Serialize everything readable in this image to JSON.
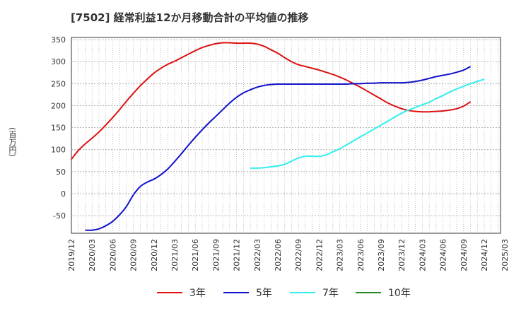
{
  "chart_data": {
    "type": "line",
    "title": "[7502]  経常利益12か月移動合計の平均値の推移",
    "ylabel": "(百万円)",
    "xlabel": "",
    "ylim": [
      -90,
      355
    ],
    "yticks": [
      -50,
      0,
      50,
      100,
      150,
      200,
      250,
      300,
      350
    ],
    "xticks": [
      "2019/12",
      "2020/03",
      "2020/06",
      "2020/09",
      "2020/12",
      "2021/03",
      "2021/06",
      "2021/09",
      "2021/12",
      "2022/03",
      "2022/06",
      "2022/09",
      "2022/12",
      "2023/03",
      "2023/06",
      "2023/09",
      "2023/12",
      "2024/03",
      "2024/06",
      "2024/09",
      "2024/12",
      "2025/03"
    ],
    "grid": true,
    "legend_position": "bottom",
    "series": [
      {
        "name": "3年",
        "color": "#dd1111",
        "points": [
          [
            "2019/12",
            78
          ],
          [
            "2020/01",
            98
          ],
          [
            "2020/02",
            113
          ],
          [
            "2020/03",
            126
          ],
          [
            "2020/04",
            140
          ],
          [
            "2020/05",
            156
          ],
          [
            "2020/06",
            173
          ],
          [
            "2020/07",
            191
          ],
          [
            "2020/08",
            210
          ],
          [
            "2020/09",
            228
          ],
          [
            "2020/10",
            245
          ],
          [
            "2020/11",
            260
          ],
          [
            "2020/12",
            274
          ],
          [
            "2021/01",
            285
          ],
          [
            "2021/02",
            294
          ],
          [
            "2021/03",
            301
          ],
          [
            "2021/04",
            309
          ],
          [
            "2021/05",
            317
          ],
          [
            "2021/06",
            325
          ],
          [
            "2021/07",
            332
          ],
          [
            "2021/08",
            337
          ],
          [
            "2021/09",
            341
          ],
          [
            "2021/10",
            343
          ],
          [
            "2021/11",
            343
          ],
          [
            "2021/12",
            342
          ],
          [
            "2022/01",
            342
          ],
          [
            "2022/02",
            342
          ],
          [
            "2022/03",
            340
          ],
          [
            "2022/04",
            335
          ],
          [
            "2022/05",
            327
          ],
          [
            "2022/06",
            319
          ],
          [
            "2022/07",
            309
          ],
          [
            "2022/08",
            300
          ],
          [
            "2022/09",
            293
          ],
          [
            "2022/10",
            289
          ],
          [
            "2022/11",
            285
          ],
          [
            "2022/12",
            281
          ],
          [
            "2023/01",
            276
          ],
          [
            "2023/02",
            271
          ],
          [
            "2023/03",
            265
          ],
          [
            "2023/04",
            258
          ],
          [
            "2023/05",
            250
          ],
          [
            "2023/06",
            242
          ],
          [
            "2023/07",
            233
          ],
          [
            "2023/08",
            224
          ],
          [
            "2023/09",
            215
          ],
          [
            "2023/10",
            206
          ],
          [
            "2023/11",
            199
          ],
          [
            "2023/12",
            193
          ],
          [
            "2024/01",
            189
          ],
          [
            "2024/02",
            187
          ],
          [
            "2024/03",
            186
          ],
          [
            "2024/04",
            186
          ],
          [
            "2024/05",
            187
          ],
          [
            "2024/06",
            188
          ],
          [
            "2024/07",
            190
          ],
          [
            "2024/08",
            193
          ],
          [
            "2024/09",
            199
          ],
          [
            "2024/10",
            209
          ]
        ]
      },
      {
        "name": "5年",
        "color": "#1111cc",
        "points": [
          [
            "2020/02",
            -83
          ],
          [
            "2020/03",
            -83
          ],
          [
            "2020/04",
            -80
          ],
          [
            "2020/05",
            -73
          ],
          [
            "2020/06",
            -63
          ],
          [
            "2020/07",
            -48
          ],
          [
            "2020/08",
            -29
          ],
          [
            "2020/09",
            -3
          ],
          [
            "2020/10",
            16
          ],
          [
            "2020/11",
            26
          ],
          [
            "2020/12",
            33
          ],
          [
            "2021/01",
            43
          ],
          [
            "2021/02",
            56
          ],
          [
            "2021/03",
            73
          ],
          [
            "2021/04",
            91
          ],
          [
            "2021/05",
            110
          ],
          [
            "2021/06",
            128
          ],
          [
            "2021/07",
            145
          ],
          [
            "2021/08",
            161
          ],
          [
            "2021/09",
            176
          ],
          [
            "2021/10",
            191
          ],
          [
            "2021/11",
            206
          ],
          [
            "2021/12",
            219
          ],
          [
            "2022/01",
            229
          ],
          [
            "2022/02",
            236
          ],
          [
            "2022/03",
            242
          ],
          [
            "2022/04",
            246
          ],
          [
            "2022/05",
            248
          ],
          [
            "2022/06",
            249
          ],
          [
            "2022/07",
            249
          ],
          [
            "2022/08",
            249
          ],
          [
            "2022/09",
            249
          ],
          [
            "2022/10",
            249
          ],
          [
            "2022/11",
            249
          ],
          [
            "2022/12",
            249
          ],
          [
            "2023/01",
            249
          ],
          [
            "2023/02",
            249
          ],
          [
            "2023/03",
            249
          ],
          [
            "2023/04",
            249
          ],
          [
            "2023/05",
            250
          ],
          [
            "2023/06",
            250
          ],
          [
            "2023/07",
            251
          ],
          [
            "2023/08",
            251
          ],
          [
            "2023/09",
            252
          ],
          [
            "2023/10",
            252
          ],
          [
            "2023/11",
            252
          ],
          [
            "2023/12",
            252
          ],
          [
            "2024/01",
            253
          ],
          [
            "2024/02",
            255
          ],
          [
            "2024/03",
            258
          ],
          [
            "2024/04",
            262
          ],
          [
            "2024/05",
            266
          ],
          [
            "2024/06",
            269
          ],
          [
            "2024/07",
            272
          ],
          [
            "2024/08",
            276
          ],
          [
            "2024/09",
            281
          ],
          [
            "2024/10",
            289
          ]
        ]
      },
      {
        "name": "7年",
        "color": "#33eeee",
        "points": [
          [
            "2022/02",
            58
          ],
          [
            "2022/03",
            58
          ],
          [
            "2022/04",
            59
          ],
          [
            "2022/05",
            61
          ],
          [
            "2022/06",
            63
          ],
          [
            "2022/07",
            67
          ],
          [
            "2022/08",
            74
          ],
          [
            "2022/09",
            81
          ],
          [
            "2022/10",
            85
          ],
          [
            "2022/11",
            85
          ],
          [
            "2022/12",
            85
          ],
          [
            "2023/01",
            88
          ],
          [
            "2023/02",
            95
          ],
          [
            "2023/03",
            102
          ],
          [
            "2023/04",
            111
          ],
          [
            "2023/05",
            120
          ],
          [
            "2023/06",
            129
          ],
          [
            "2023/07",
            138
          ],
          [
            "2023/08",
            147
          ],
          [
            "2023/09",
            156
          ],
          [
            "2023/10",
            165
          ],
          [
            "2023/11",
            174
          ],
          [
            "2023/12",
            183
          ],
          [
            "2024/01",
            190
          ],
          [
            "2024/02",
            196
          ],
          [
            "2024/03",
            202
          ],
          [
            "2024/04",
            208
          ],
          [
            "2024/05",
            216
          ],
          [
            "2024/06",
            223
          ],
          [
            "2024/07",
            231
          ],
          [
            "2024/08",
            238
          ],
          [
            "2024/09",
            244
          ],
          [
            "2024/10",
            250
          ],
          [
            "2024/11",
            255
          ],
          [
            "2024/12",
            260
          ]
        ]
      },
      {
        "name": "10年",
        "color": "#228822",
        "points": []
      }
    ]
  }
}
